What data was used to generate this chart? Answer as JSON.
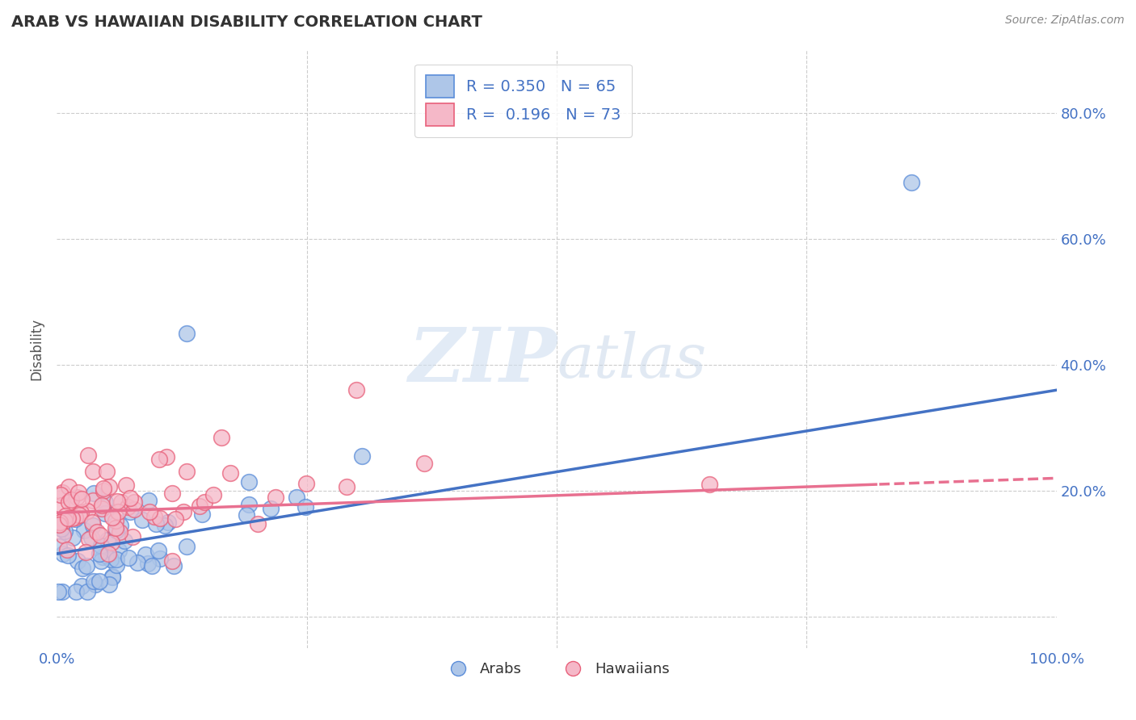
{
  "title": "ARAB VS HAWAIIAN DISABILITY CORRELATION CHART",
  "source_text": "Source: ZipAtlas.com",
  "ylabel": "Disability",
  "watermark": "ZIPatlas",
  "xlim": [
    0.0,
    1.0
  ],
  "ylim": [
    -0.05,
    0.9
  ],
  "x_tick_labels": [
    "0.0%",
    "",
    "",
    "",
    "100.0%"
  ],
  "y_ticks_right": [
    0.0,
    0.2,
    0.4,
    0.6,
    0.8
  ],
  "y_tick_labels_right": [
    "",
    "20.0%",
    "40.0%",
    "60.0%",
    "80.0%"
  ],
  "arab_fill_color": "#aec6e8",
  "arab_edge_color": "#5b8dd9",
  "hawaiian_fill_color": "#f5b8c8",
  "hawaiian_edge_color": "#e8607a",
  "arab_line_color": "#4472c4",
  "hawaiian_line_color": "#e87090",
  "legend_arab_R": "0.350",
  "legend_arab_N": "65",
  "legend_hawaiian_R": "0.196",
  "legend_hawaiian_N": "73",
  "arab_line_intercept": 0.1,
  "arab_line_slope": 0.26,
  "hawaiian_line_intercept": 0.165,
  "hawaiian_line_slope": 0.055,
  "background_color": "#ffffff",
  "grid_color": "#cccccc",
  "title_color": "#333333",
  "axis_label_color": "#555555",
  "tick_color": "#4472c4",
  "legend_text_color": "#4472c4"
}
